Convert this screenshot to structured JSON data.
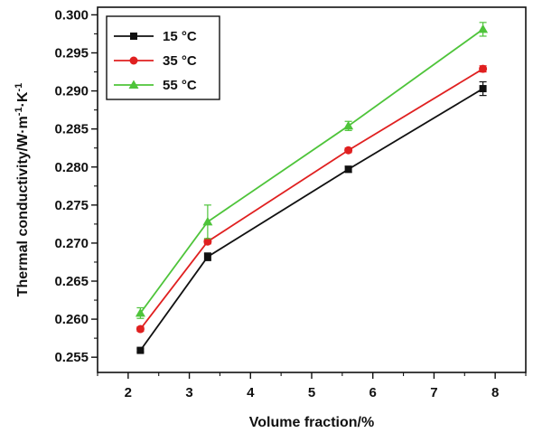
{
  "chart_data": {
    "type": "line",
    "xlabel": "Volume fraction/%",
    "ylabel_base": "Thermal conductivity/W·m",
    "ylabel_sup1": "-1",
    "ylabel_mid": "·K",
    "ylabel_sup2": "-1",
    "xlim": [
      1.5,
      8.5
    ],
    "ylim": [
      0.253,
      0.301
    ],
    "xticks": [
      2,
      3,
      4,
      5,
      6,
      7,
      8
    ],
    "yticks": [
      0.255,
      0.26,
      0.265,
      0.27,
      0.275,
      0.28,
      0.285,
      0.29,
      0.295,
      0.3
    ],
    "ytick_labels": [
      "0.255",
      "0.260",
      "0.265",
      "0.270",
      "0.275",
      "0.280",
      "0.285",
      "0.290",
      "0.295",
      "0.300"
    ],
    "x": [
      2.2,
      3.3,
      5.6,
      7.8
    ],
    "legend_position": "top-left",
    "grid": false,
    "series": [
      {
        "name": "15 °C",
        "color": "#111111",
        "marker": "square",
        "values": [
          0.2559,
          0.2682,
          0.2797,
          0.2903
        ],
        "errors": [
          0.0002,
          0.0005,
          0.0004,
          0.0009
        ]
      },
      {
        "name": "35 °C",
        "color": "#e02020",
        "marker": "circle",
        "values": [
          0.2587,
          0.2702,
          0.2822,
          0.2929
        ],
        "errors": [
          0.0003,
          0.0003,
          0.0003,
          0.0004
        ]
      },
      {
        "name": "55 °C",
        "color": "#4ec43a",
        "marker": "triangle",
        "values": [
          0.2608,
          0.2728,
          0.2854,
          0.2981
        ],
        "errors": [
          0.0007,
          0.0022,
          0.0006,
          0.0009
        ]
      }
    ]
  }
}
